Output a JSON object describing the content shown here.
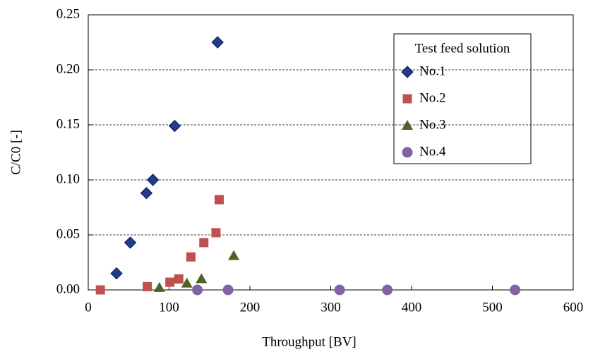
{
  "chart_data": {
    "type": "scatter",
    "xlabel": "Throughput [BV]",
    "ylabel": "C/C0 [-]",
    "legend_title": "Test feed solution",
    "legend": "upper right",
    "xlim": [
      0,
      600
    ],
    "xticks": [
      0,
      100,
      200,
      300,
      400,
      500,
      600
    ],
    "ylim": [
      0,
      0.25
    ],
    "yticks": [
      {
        "value": 0,
        "label": "0.00"
      },
      {
        "value": 0.05,
        "label": "0.05"
      },
      {
        "value": 0.1,
        "label": "0.10"
      },
      {
        "value": 0.15,
        "label": "0.15"
      },
      {
        "value": 0.2,
        "label": "0.20"
      },
      {
        "value": 0.25,
        "label": "0.25"
      }
    ],
    "grid": true,
    "series": [
      {
        "name": "No.1",
        "color": "#1f3d8c",
        "marker": "diamond",
        "x": [
          35,
          52,
          72,
          80,
          107,
          160
        ],
        "y": [
          0.015,
          0.043,
          0.088,
          0.1,
          0.149,
          0.225
        ]
      },
      {
        "name": "No.2",
        "color": "#c0504d",
        "marker": "square",
        "x": [
          15,
          73,
          101,
          112,
          127,
          143,
          158,
          162
        ],
        "y": [
          0,
          0.003,
          0.007,
          0.01,
          0.03,
          0.043,
          0.052,
          0.082
        ]
      },
      {
        "name": "No.3",
        "color": "#4f6228",
        "marker": "triangle",
        "x": [
          88,
          122,
          140,
          180
        ],
        "y": [
          0.002,
          0.006,
          0.01,
          0.031
        ]
      },
      {
        "name": "No.4",
        "color": "#8064a2",
        "marker": "circle",
        "x": [
          135,
          173,
          311,
          370,
          528
        ],
        "y": [
          0,
          0,
          0,
          0,
          0
        ]
      }
    ]
  }
}
